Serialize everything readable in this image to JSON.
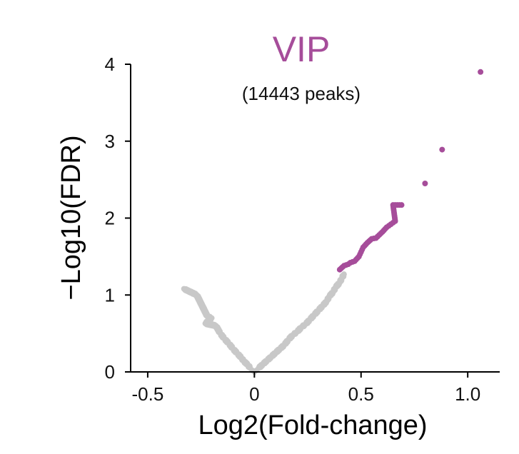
{
  "chart_data": {
    "type": "scatter",
    "title": "VIP",
    "subtitle": "(14443 peaks)",
    "xlabel": "Log2(Fold-change)",
    "ylabel": "−Log10(FDR)",
    "xlim": [
      -0.58,
      1.15
    ],
    "ylim": [
      0,
      4
    ],
    "xticks": [
      -0.5,
      0,
      0.5,
      1.0
    ],
    "xtick_labels": [
      "-0.5",
      "0",
      "0.5",
      "1.0"
    ],
    "yticks": [
      0,
      1,
      2,
      3,
      4
    ],
    "ytick_labels": [
      "0",
      "1",
      "2",
      "3",
      "4"
    ],
    "colors": {
      "significant": "#a64d9a",
      "not_significant": "#c8c8c8",
      "title": "#a64d9a"
    },
    "series": [
      {
        "values": [
          [
            -0.33,
            1.08
          ],
          [
            -0.27,
            1.0
          ],
          [
            -0.22,
            0.72
          ],
          [
            -0.2,
            0.7
          ],
          [
            -0.23,
            0.63
          ],
          [
            -0.18,
            0.6
          ],
          [
            -0.16,
            0.5
          ],
          [
            -0.14,
            0.43
          ],
          [
            -0.12,
            0.37
          ],
          [
            -0.1,
            0.3
          ],
          [
            -0.08,
            0.24
          ],
          [
            -0.06,
            0.18
          ],
          [
            -0.05,
            0.14
          ],
          [
            -0.03,
            0.09
          ],
          [
            -0.02,
            0.05
          ],
          [
            -0.01,
            0.02
          ],
          [
            0.0,
            0.0
          ],
          [
            0.01,
            0.02
          ],
          [
            0.02,
            0.05
          ],
          [
            0.04,
            0.1
          ],
          [
            0.06,
            0.15
          ],
          [
            0.08,
            0.2
          ],
          [
            0.1,
            0.25
          ],
          [
            0.12,
            0.3
          ],
          [
            0.14,
            0.35
          ],
          [
            0.16,
            0.42
          ],
          [
            0.18,
            0.48
          ],
          [
            0.2,
            0.52
          ],
          [
            0.22,
            0.58
          ],
          [
            0.24,
            0.62
          ],
          [
            0.26,
            0.68
          ],
          [
            0.28,
            0.74
          ],
          [
            0.3,
            0.8
          ],
          [
            0.32,
            0.86
          ],
          [
            0.34,
            0.92
          ],
          [
            0.35,
            0.98
          ],
          [
            0.37,
            1.04
          ],
          [
            0.38,
            1.1
          ],
          [
            0.4,
            1.16
          ],
          [
            0.41,
            1.22
          ],
          [
            0.42,
            1.27
          ]
        ]
      },
      {
        "values": [
          [
            0.4,
            1.33
          ],
          [
            0.42,
            1.38
          ],
          [
            0.44,
            1.4
          ],
          [
            0.45,
            1.42
          ],
          [
            0.47,
            1.44
          ],
          [
            0.49,
            1.5
          ],
          [
            0.5,
            1.56
          ],
          [
            0.51,
            1.62
          ],
          [
            0.53,
            1.68
          ],
          [
            0.55,
            1.73
          ],
          [
            0.57,
            1.74
          ],
          [
            0.6,
            1.82
          ],
          [
            0.62,
            1.88
          ],
          [
            0.64,
            1.92
          ],
          [
            0.66,
            1.96
          ],
          [
            0.65,
            2.17
          ],
          [
            0.69,
            2.17
          ],
          [
            0.8,
            2.45
          ],
          [
            0.88,
            2.89
          ],
          [
            1.06,
            3.9
          ]
        ]
      }
    ]
  }
}
